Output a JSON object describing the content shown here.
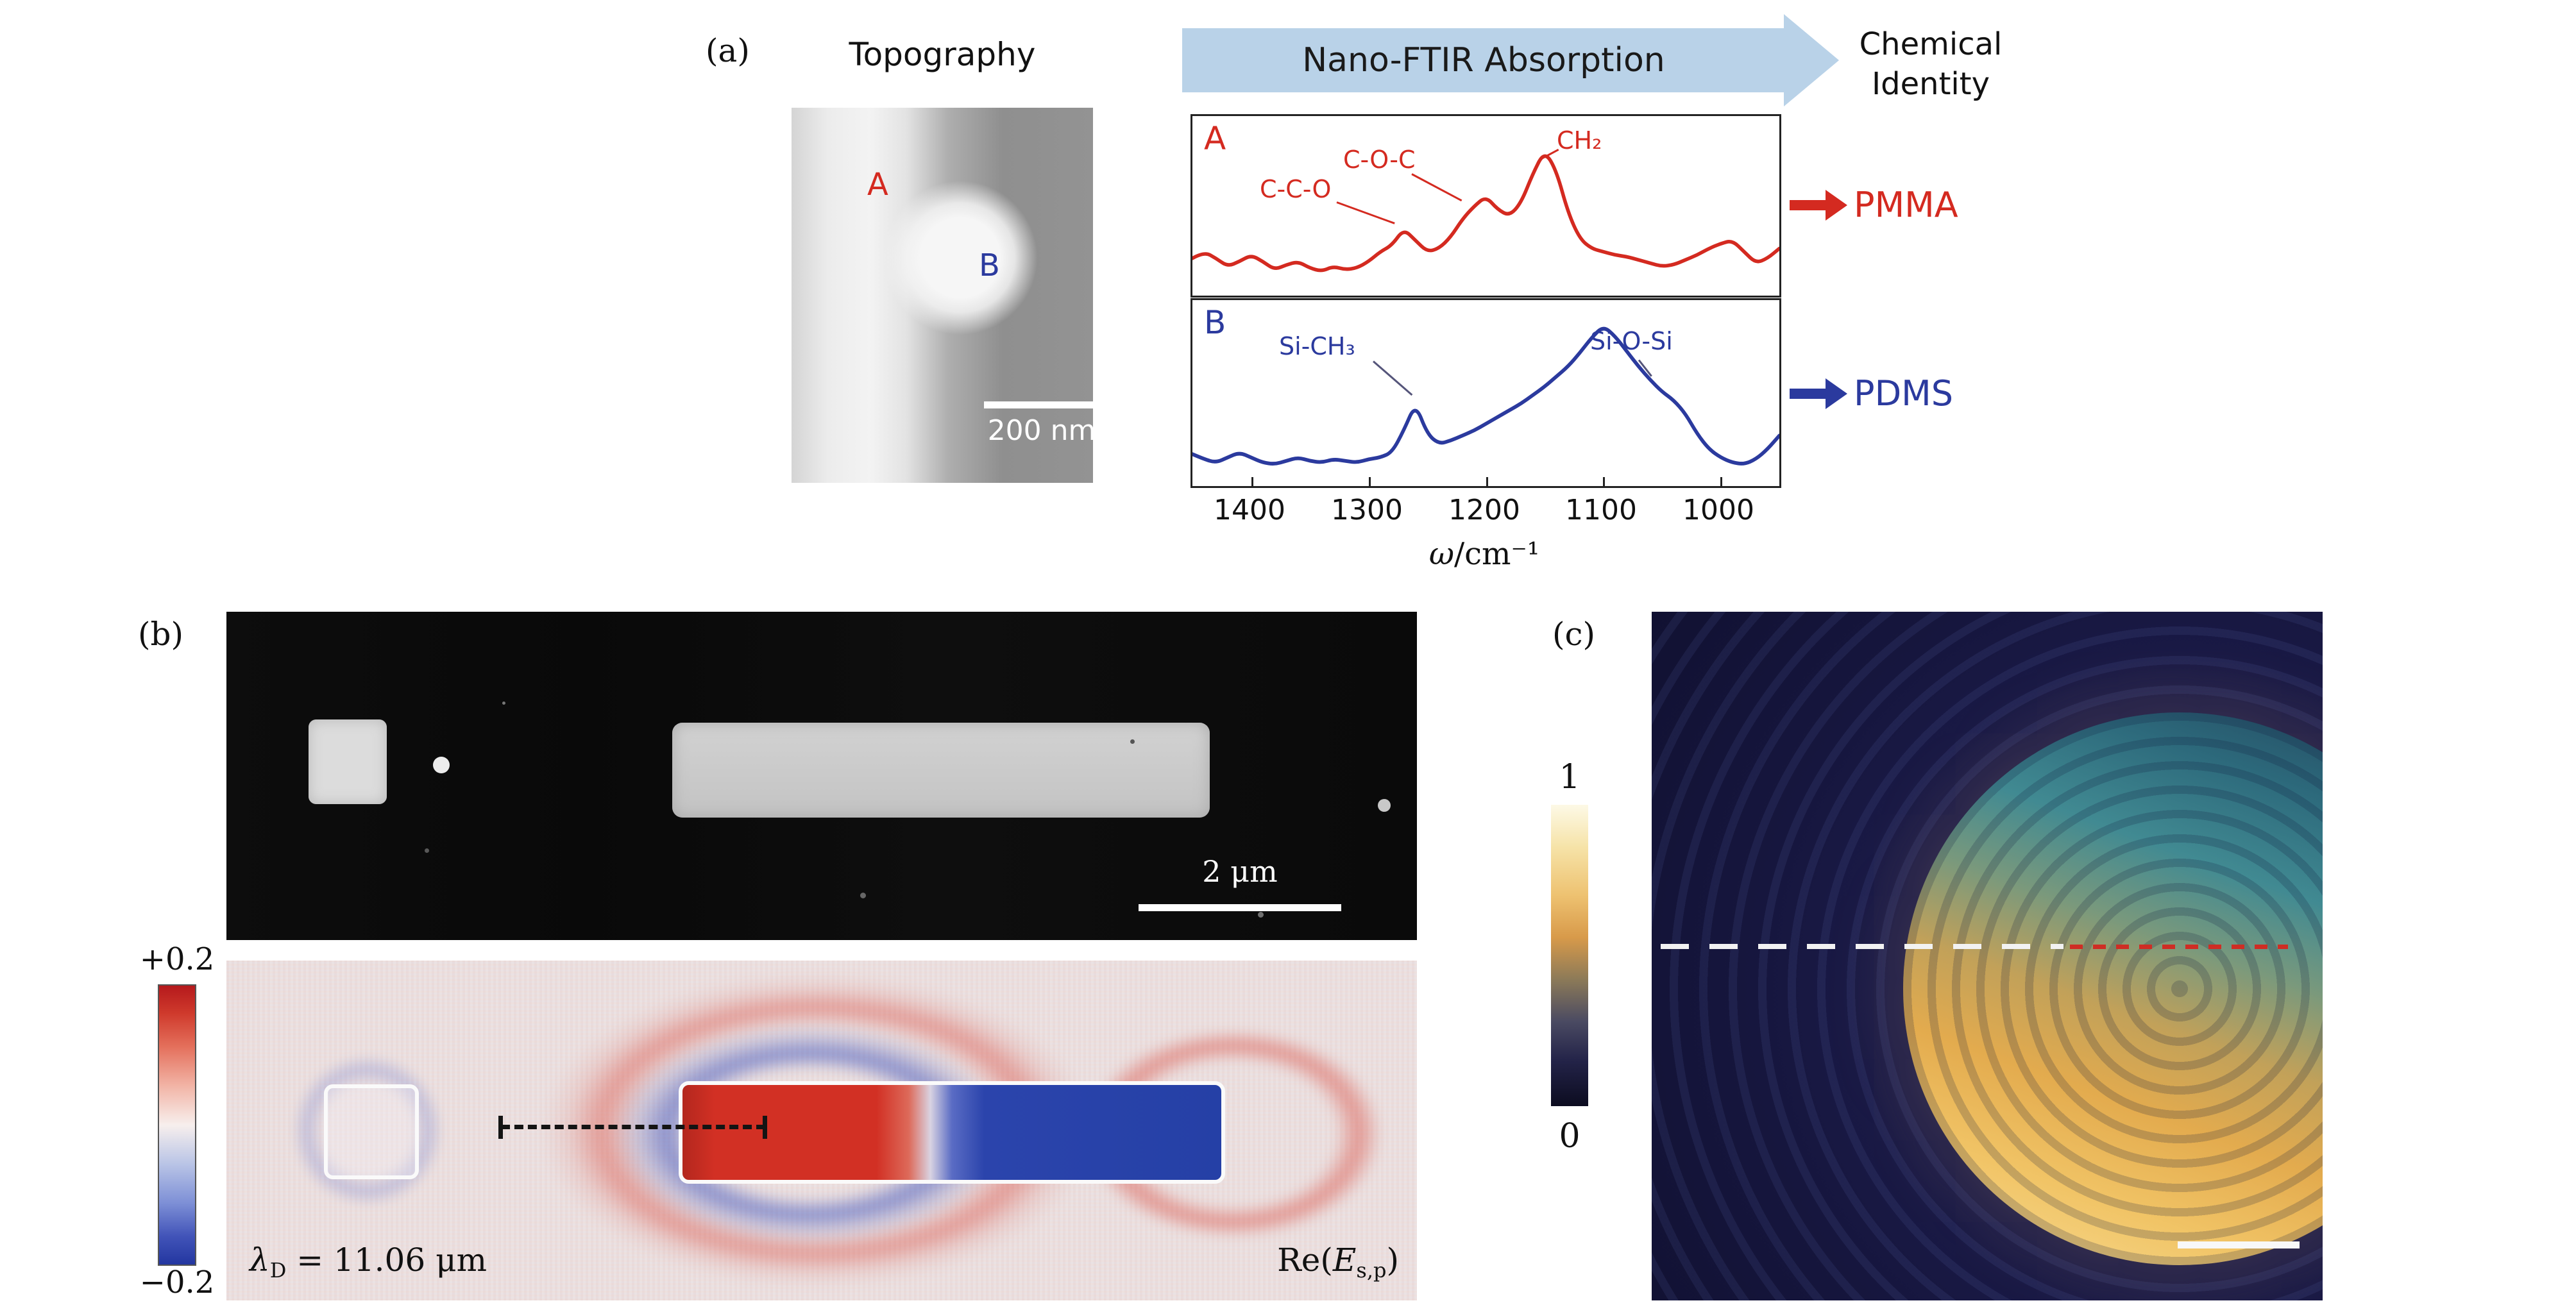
{
  "panel_a": {
    "tag": "(a)",
    "topography": {
      "title": "Topography",
      "marker_a": "A",
      "marker_b": "B",
      "scale_label": "200 nm"
    },
    "banner_label": "Nano-FTIR Absorption",
    "chemical_identity": "Chemical\nIdentity",
    "spectrum_a_letter": "A",
    "spectrum_b_letter": "B",
    "peaks_a": {
      "cco": "C-C-O",
      "coc": "C-O-C",
      "ch2": "CH₂"
    },
    "peaks_b": {
      "sich3": "Si-CH₃",
      "siosi": "Si-O-Si"
    },
    "pmma_label": "PMMA",
    "pdms_label": "PDMS",
    "axis": {
      "ticks": [
        "1400",
        "1300",
        "1200",
        "1100",
        "1000"
      ],
      "omega": "ω",
      "per_cm": "/cm⁻¹"
    }
  },
  "panel_b": {
    "tag": "(b)",
    "scale_label": "2 μm",
    "colorbar_top": "+0.2",
    "colorbar_bottom": "−0.2",
    "lambda_symbol": "λ",
    "lambda_sub": "D",
    "lambda_value": " = 11.06 μm",
    "re_pre": "Re(",
    "re_var": "E",
    "re_sub": "s,p",
    "re_post": ")"
  },
  "panel_c": {
    "tag": "(c)",
    "colorbar_top": "1",
    "colorbar_bottom": "0"
  },
  "colors": {
    "pmma_red": "#d42a20",
    "pdms_blue": "#2b3a9e",
    "banner_blue": "#b9d2e8"
  },
  "chart_data": {
    "type": "line",
    "xlabel": "ω/cm⁻¹",
    "x_ticks": [
      1400,
      1300,
      1200,
      1100,
      1000
    ],
    "x_range_reversed": [
      1450,
      950
    ],
    "spectra": [
      {
        "name": "A (PMMA)",
        "color": "#d42a20",
        "xrange": [
          1450,
          950
        ],
        "peak_assignments": [
          "C-C-O ~1270",
          "C-O-C ~1200",
          "CH2 ~1150"
        ],
        "x": [
          1450,
          1440,
          1430,
          1420,
          1410,
          1400,
          1390,
          1380,
          1370,
          1360,
          1350,
          1340,
          1330,
          1320,
          1310,
          1300,
          1290,
          1280,
          1270,
          1260,
          1250,
          1240,
          1230,
          1220,
          1210,
          1200,
          1190,
          1180,
          1170,
          1160,
          1150,
          1140,
          1130,
          1120,
          1110,
          1100,
          1090,
          1080,
          1070,
          1060,
          1050,
          1040,
          1030,
          1020,
          1010,
          1000,
          990,
          980,
          970,
          960,
          950
        ],
        "y": [
          0.2,
          0.24,
          0.2,
          0.15,
          0.18,
          0.22,
          0.18,
          0.13,
          0.16,
          0.18,
          0.14,
          0.12,
          0.15,
          0.13,
          0.14,
          0.18,
          0.24,
          0.28,
          0.38,
          0.31,
          0.24,
          0.26,
          0.33,
          0.44,
          0.52,
          0.58,
          0.5,
          0.46,
          0.54,
          0.72,
          0.86,
          0.74,
          0.48,
          0.32,
          0.26,
          0.24,
          0.22,
          0.21,
          0.19,
          0.17,
          0.15,
          0.16,
          0.19,
          0.22,
          0.26,
          0.29,
          0.31,
          0.24,
          0.17,
          0.2,
          0.26
        ]
      },
      {
        "name": "B (PDMS)",
        "color": "#2b3a9e",
        "xrange": [
          1450,
          950
        ],
        "peak_assignments": [
          "Si-CH3 ~1260",
          "Si-O-Si ~1100-1040"
        ],
        "x": [
          1450,
          1440,
          1430,
          1420,
          1410,
          1400,
          1390,
          1380,
          1370,
          1360,
          1350,
          1340,
          1330,
          1320,
          1310,
          1300,
          1290,
          1280,
          1270,
          1260,
          1250,
          1240,
          1230,
          1220,
          1210,
          1200,
          1190,
          1180,
          1170,
          1160,
          1150,
          1140,
          1130,
          1120,
          1110,
          1100,
          1090,
          1080,
          1070,
          1060,
          1050,
          1040,
          1030,
          1020,
          1010,
          1000,
          990,
          980,
          970,
          960,
          950
        ],
        "y": [
          0.16,
          0.13,
          0.11,
          0.14,
          0.17,
          0.14,
          0.11,
          0.1,
          0.12,
          0.14,
          0.12,
          0.11,
          0.13,
          0.12,
          0.11,
          0.13,
          0.14,
          0.17,
          0.3,
          0.46,
          0.28,
          0.22,
          0.24,
          0.27,
          0.3,
          0.34,
          0.38,
          0.42,
          0.46,
          0.51,
          0.56,
          0.62,
          0.68,
          0.76,
          0.85,
          0.92,
          0.86,
          0.77,
          0.68,
          0.6,
          0.53,
          0.48,
          0.4,
          0.28,
          0.19,
          0.14,
          0.11,
          0.1,
          0.13,
          0.19,
          0.27
        ]
      }
    ]
  }
}
